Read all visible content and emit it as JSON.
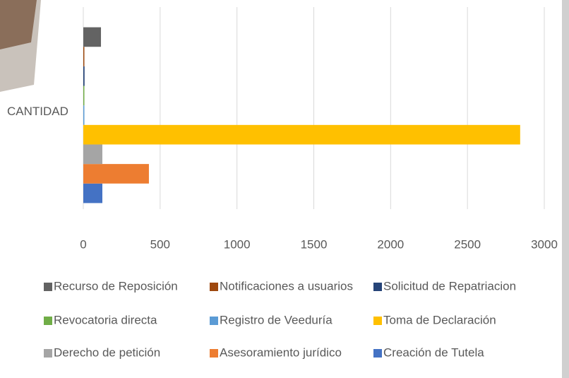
{
  "chart_data": {
    "type": "bar",
    "orientation": "horizontal",
    "categories": [
      "CANTIDAD"
    ],
    "series": [
      {
        "name": "Creación de Tutela",
        "color": "#4472c4",
        "values": [
          124
        ]
      },
      {
        "name": "Asesoramiento jurídico",
        "color": "#ed7d31",
        "values": [
          427
        ]
      },
      {
        "name": "Derecho de petición",
        "color": "#a5a5a5",
        "values": [
          124
        ]
      },
      {
        "name": "Toma de Declaración",
        "color": "#ffc000",
        "values": [
          2843
        ]
      },
      {
        "name": "Registro de Veeduría",
        "color": "#5b9bd5",
        "values": [
          5
        ]
      },
      {
        "name": "Revocatoria directa",
        "color": "#70ad47",
        "values": [
          3
        ]
      },
      {
        "name": "Solicitud de Repatriacion",
        "color": "#264478",
        "values": [
          8
        ]
      },
      {
        "name": "Notificaciones a usuarios",
        "color": "#9e480e",
        "values": [
          2
        ]
      },
      {
        "name": "Recurso de Reposición",
        "color": "#636363",
        "values": [
          115
        ]
      }
    ],
    "xlim": [
      0,
      3000
    ],
    "xticks": [
      0,
      500,
      1000,
      1500,
      2000,
      2500,
      3000
    ],
    "grid": true
  }
}
